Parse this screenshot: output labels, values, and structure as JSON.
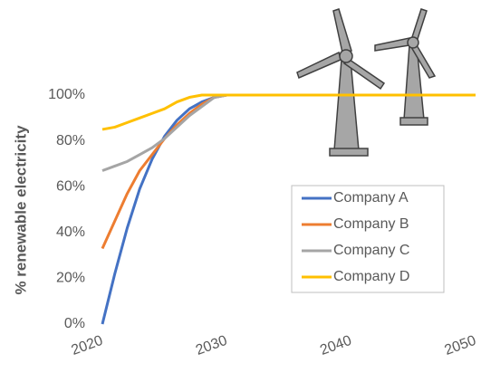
{
  "chart_data": {
    "type": "line",
    "y_label": "% renewable electricity",
    "x": [
      2020,
      2021,
      2022,
      2023,
      2024,
      2025,
      2026,
      2027,
      2028,
      2029,
      2030,
      2035,
      2040,
      2045,
      2050
    ],
    "series": [
      {
        "name": "Company A",
        "color": "#4472c4",
        "values": [
          0,
          22,
          42,
          59,
          72,
          82,
          89,
          94,
          97,
          99,
          100,
          100,
          100,
          100,
          100
        ]
      },
      {
        "name": "Company B",
        "color": "#ed7d31",
        "values": [
          33,
          45,
          57,
          67,
          74,
          81,
          87,
          92,
          96,
          99,
          100,
          100,
          100,
          100,
          100
        ]
      },
      {
        "name": "Company C",
        "color": "#a5a5a5",
        "values": [
          67,
          69,
          71,
          74,
          77,
          81,
          86,
          91,
          95,
          99,
          100,
          100,
          100,
          100,
          100
        ]
      },
      {
        "name": "Company D",
        "color": "#ffc000",
        "values": [
          85,
          86,
          88,
          90,
          92,
          94,
          97,
          99,
          100,
          100,
          100,
          100,
          100,
          100,
          100
        ]
      }
    ],
    "xlim": [
      2020,
      2050
    ],
    "xticks": [
      2020,
      2030,
      2040,
      2050
    ],
    "ylim": [
      0,
      100
    ],
    "yticks": [
      {
        "value": 0,
        "label": "0%"
      },
      {
        "value": 20,
        "label": "20%"
      },
      {
        "value": 40,
        "label": "40%"
      },
      {
        "value": 60,
        "label": "60%"
      },
      {
        "value": 80,
        "label": "80%"
      },
      {
        "value": 100,
        "label": "100%"
      }
    ],
    "grid": false,
    "legend": "right"
  }
}
